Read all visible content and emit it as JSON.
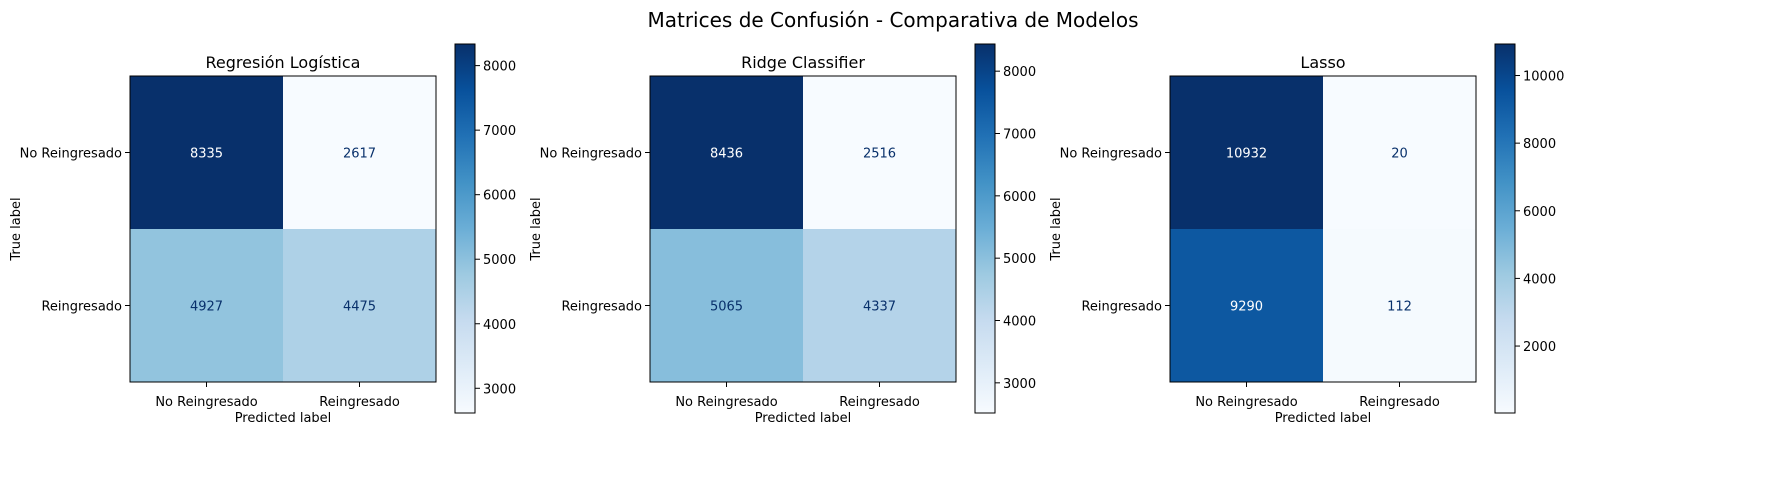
{
  "figure": {
    "title": "Matrices de Confusión - Comparativa de Modelos"
  },
  "chart_data": [
    {
      "type": "heatmap",
      "title": "Regresión Logística",
      "xlabel": "Predicted label",
      "ylabel": "True label",
      "x_categories": [
        "No Reingresado",
        "Reingresado"
      ],
      "y_categories": [
        "No Reingresado",
        "Reingresado"
      ],
      "values": [
        [
          8335,
          2617
        ],
        [
          4927,
          4475
        ]
      ],
      "colormap": "Blues",
      "colorbar": {
        "range": [
          2617,
          8335
        ],
        "ticks": [
          3000,
          4000,
          5000,
          6000,
          7000,
          8000
        ]
      }
    },
    {
      "type": "heatmap",
      "title": "Ridge Classifier",
      "xlabel": "Predicted label",
      "ylabel": "True label",
      "x_categories": [
        "No Reingresado",
        "Reingresado"
      ],
      "y_categories": [
        "No Reingresado",
        "Reingresado"
      ],
      "values": [
        [
          8436,
          2516
        ],
        [
          5065,
          4337
        ]
      ],
      "colormap": "Blues",
      "colorbar": {
        "range": [
          2516,
          8436
        ],
        "ticks": [
          3000,
          4000,
          5000,
          6000,
          7000,
          8000
        ]
      }
    },
    {
      "type": "heatmap",
      "title": "Lasso",
      "xlabel": "Predicted label",
      "ylabel": "True label",
      "x_categories": [
        "No Reingresado",
        "Reingresado"
      ],
      "y_categories": [
        "No Reingresado",
        "Reingresado"
      ],
      "values": [
        [
          10932,
          20
        ],
        [
          9290,
          112
        ]
      ],
      "colormap": "Blues",
      "colorbar": {
        "range": [
          20,
          10932
        ],
        "ticks": [
          2000,
          4000,
          6000,
          8000,
          10000
        ]
      }
    }
  ]
}
